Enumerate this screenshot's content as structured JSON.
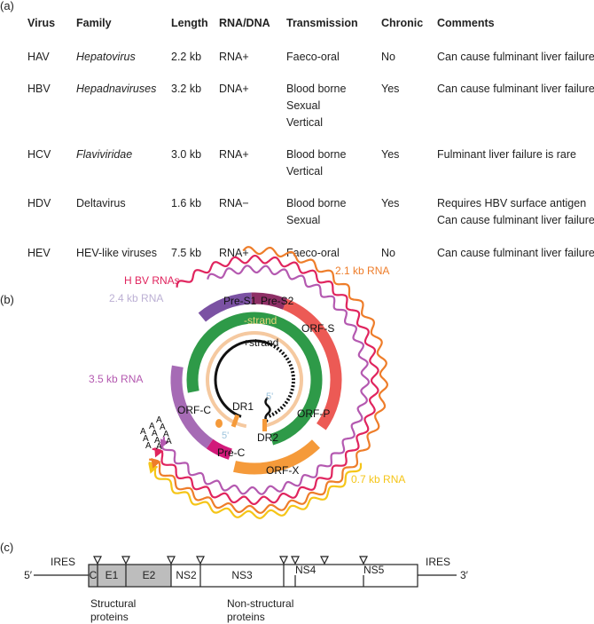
{
  "panels": {
    "a": "(a)",
    "b": "(b)",
    "c": "(c)"
  },
  "table": {
    "headers": [
      "Virus",
      "Family",
      "Length",
      "RNA/DNA",
      "Transmission",
      "Chronic",
      "Comments"
    ],
    "rows": [
      {
        "virus": "HAV",
        "family": "Hepatovirus",
        "family_italic": true,
        "length": "2.2 kb",
        "type": "RNA+",
        "transmission": [
          "Faeco-oral"
        ],
        "chronic": "No",
        "comments": [
          "Can cause fulminant liver failure"
        ]
      },
      {
        "virus": "HBV",
        "family": "Hepadnaviruses",
        "family_italic": true,
        "length": "3.2 kb",
        "type": "DNA+",
        "transmission": [
          "Blood borne",
          "Sexual",
          "Vertical"
        ],
        "chronic": "Yes",
        "comments": [
          "Can cause fulminant liver failure"
        ]
      },
      {
        "virus": "HCV",
        "family": "Flaviviridae",
        "family_italic": true,
        "length": "3.0 kb",
        "type": "RNA+",
        "transmission": [
          "Blood borne",
          "Vertical"
        ],
        "chronic": "Yes",
        "comments": [
          "Fulminant liver failure is rare"
        ]
      },
      {
        "virus": "HDV",
        "family": "Deltavirus",
        "family_italic": false,
        "length": "1.6 kb",
        "type": "RNA−",
        "transmission": [
          "Blood borne",
          "Sexual"
        ],
        "chronic": "Yes",
        "comments": [
          "Requires HBV surface antigen",
          "Can cause fulminant liver failure"
        ]
      },
      {
        "virus": "HEV",
        "family": "HEV-like viruses",
        "family_italic": false,
        "length": "7.5 kb",
        "type": "RNA+",
        "transmission": [
          "Faeco-oral"
        ],
        "chronic": "No",
        "comments": [
          "Can cause fulminant liver failure"
        ]
      }
    ]
  },
  "hbv_diagram": {
    "rna_labels": {
      "hbv_rnas": "H BV RNAs",
      "rna_2_1": "2.1 kb RNA",
      "rna_2_4": "2.4 kb RNA",
      "rna_3_5": "3.5 kb RNA",
      "rna_0_7": "0.7 kb RNA"
    },
    "orf_labels": {
      "pre_s1": "Pre-S1",
      "pre_s2": "Pre-S2",
      "orf_s": "ORF-S",
      "orf_c": "ORF-C",
      "pre_c": "Pre-C",
      "orf_p": "ORF-P",
      "orf_x": "ORF-X"
    },
    "strand_labels": {
      "minus": "-strand",
      "plus": "+strand",
      "dr1": "DR1",
      "dr2": "DR2",
      "five_prime_1": "5'",
      "five_prime_2": "5'"
    },
    "polya": "A",
    "colors": {
      "pre_s1": "#7b52a3",
      "pre_s2": "#8e2f66",
      "orf_s": "#ec5a55",
      "orf_p": "#2e9a48",
      "orf_c": "#a66bb5",
      "pre_c": "#d21a7a",
      "orf_x": "#f59a3a",
      "rna_3_5": "#b459b0",
      "rna_hbv": "#e0245e",
      "rna_2_1": "#ee7d2a",
      "rna_0_7": "#f5c518",
      "label_2_4": "#bcb0d4",
      "minus_strand": "#e7d37a",
      "peach": "#f5c9a0"
    }
  },
  "hcv_genome": {
    "ends": {
      "five": "5′",
      "three": "3′"
    },
    "ires_left": "IRES",
    "ires_right": "IRES",
    "segments": [
      "C",
      "E1",
      "E2",
      "NS2",
      "NS3",
      "NS4",
      "NS5"
    ],
    "structural_label": [
      "Structural",
      "proteins"
    ],
    "nonstructural_label": [
      "Non-structural",
      "proteins"
    ]
  }
}
